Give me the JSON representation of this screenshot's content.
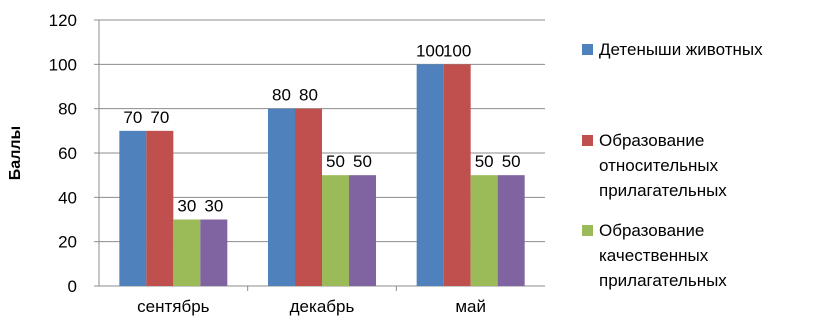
{
  "chart_data": {
    "type": "bar",
    "categories": [
      "сентябрь",
      "декабрь",
      "май"
    ],
    "series": [
      {
        "name": "Детеныши животных",
        "values": [
          70,
          80,
          100
        ],
        "color": "#4F81BD"
      },
      {
        "name": "Образование относительных прилагательных",
        "values": [
          70,
          80,
          100
        ],
        "color": "#C0504D"
      },
      {
        "name": "Образование качественных прилагательных",
        "values": [
          30,
          50,
          50
        ],
        "color": "#9BBB59"
      },
      {
        "name": "",
        "values": [
          30,
          50,
          50
        ],
        "color": "#8064A2"
      }
    ],
    "data_labels": [
      [
        "70",
        "70",
        "30",
        "30"
      ],
      [
        "80",
        "80",
        "50",
        "50"
      ],
      [
        "100",
        "100",
        "50",
        "50"
      ]
    ],
    "ylabel": "Баллы",
    "ylim": [
      0,
      120
    ],
    "yticks": [
      "0",
      "20",
      "40",
      "60",
      "80",
      "100",
      "120"
    ],
    "grid": true,
    "legend": "right"
  }
}
